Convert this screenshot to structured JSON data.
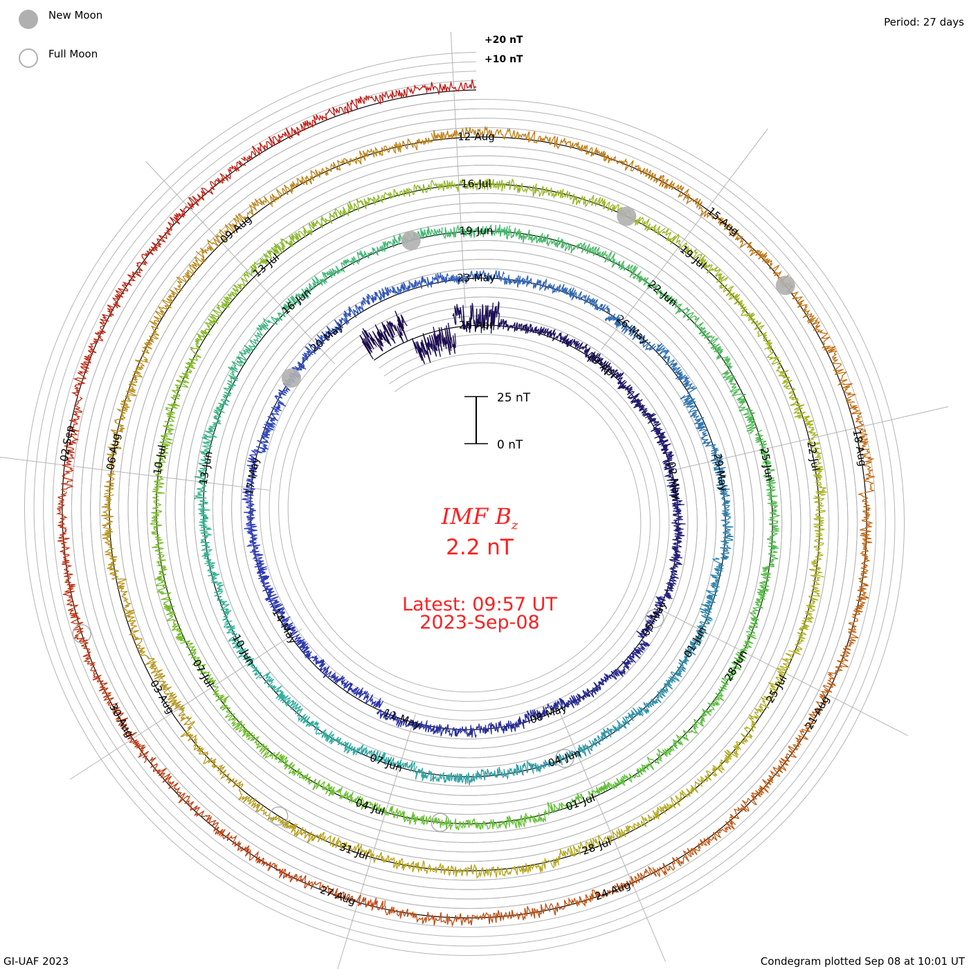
{
  "legend": {
    "new_moon_label": "New Moon",
    "full_moon_label": "Full Moon",
    "new_moon_color": "#b0b0b0"
  },
  "period_label": "Period: 27 days",
  "footer": {
    "credit": "GI-UAF 2023",
    "plotted": "Condegram plotted Sep 08 at 10:01 UT"
  },
  "center": {
    "title_main": "IMF B",
    "title_sub": "z",
    "current_value": "2.2 nT",
    "latest_label": "Latest: 09:57 UT",
    "latest_date": "2023-Sep-08",
    "text_color": "#ff2020"
  },
  "chart_data": {
    "type": "line",
    "subtype": "condegram-spiral",
    "title": "IMF Bz",
    "period_days": 27,
    "start_date": "2023-04-26",
    "data_start_offset_days": -2.5,
    "data_end_offset_days": 135,
    "grid_step_nT": 5,
    "scale_bar": {
      "top_label": "25 nT",
      "bottom_label": "0 nT",
      "value_nT": 25
    },
    "outer_labels": [
      "+10 nT",
      "+20 nT"
    ],
    "date_labels": [
      "26-Apr",
      "29-Apr",
      "02-May",
      "05-May",
      "08-May",
      "11-May",
      "14-May",
      "17-May",
      "20-May",
      "23-May",
      "26-May",
      "29-May",
      "01-Jun",
      "04-Jun",
      "07-Jun",
      "10-Jun",
      "13-Jun",
      "16-Jun",
      "19-Jun",
      "22-Jun",
      "25-Jun",
      "28-Jun",
      "01-Jul",
      "04-Jul",
      "07-Jul",
      "10-Jul",
      "13-Jul",
      "16-Jul",
      "19-Jul",
      "22-Jul",
      "25-Jul",
      "28-Jul",
      "31-Jul",
      "03-Aug",
      "06-Aug",
      "09-Aug",
      "12-Aug",
      "15-Aug",
      "18-Aug",
      "21-Aug",
      "24-Aug",
      "27-Aug",
      "30-Aug",
      "02-Sep"
    ],
    "date_label_step_days": 3,
    "new_moon_offsets_days": [
      23,
      53,
      83,
      112
    ],
    "full_moon_offsets_days": [
      9,
      39,
      68,
      97,
      127
    ],
    "daily_mean_nT": [
      8,
      -6,
      4,
      1,
      2,
      1,
      0,
      1,
      -1,
      0,
      1,
      -1,
      2,
      0,
      -2,
      0,
      1,
      1,
      -3,
      -2,
      -2,
      -1,
      0,
      1,
      -2,
      0,
      1,
      3,
      2,
      1,
      0,
      1,
      -1,
      2,
      -2,
      0,
      1,
      -2,
      0,
      1,
      -1,
      0,
      -1,
      1,
      -2,
      0,
      -1,
      1,
      -1,
      0,
      2,
      1,
      3,
      1,
      1,
      2,
      0,
      -1,
      1,
      0,
      1,
      -2,
      0,
      1,
      -1,
      0,
      1,
      0,
      -2,
      1,
      0,
      -1,
      0,
      1,
      -1,
      2,
      0,
      -1,
      0,
      2,
      3,
      2,
      1,
      0,
      -1,
      1,
      2,
      0,
      -1,
      2,
      0,
      1,
      -2,
      0,
      -1,
      -2,
      1,
      0,
      -1,
      2,
      0,
      -4,
      -2,
      1,
      0,
      -1,
      2,
      3,
      1,
      0,
      2,
      1,
      0,
      -1,
      1,
      2,
      3,
      0,
      1,
      -1,
      0,
      1,
      -1,
      0,
      1,
      -1,
      0,
      -1,
      0,
      1,
      0,
      -2,
      1,
      0,
      1,
      2,
      3,
      2
    ],
    "daily_spread_nT": 4,
    "color_stops": [
      "#1a0a4a",
      "#3040c0",
      "#30b0a0",
      "#60c030",
      "#b0b020",
      "#c07010",
      "#c01010"
    ]
  }
}
